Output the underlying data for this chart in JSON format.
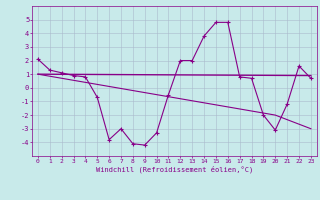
{
  "line1_x": [
    0,
    1,
    2,
    3,
    4,
    5,
    6,
    7,
    8,
    9,
    10,
    11,
    12,
    13,
    14,
    15,
    16,
    17,
    18,
    19,
    20,
    21,
    22,
    23
  ],
  "line1_y": [
    2.1,
    1.3,
    1.1,
    0.9,
    0.8,
    -0.7,
    -3.8,
    -3.0,
    -4.1,
    -4.2,
    -3.3,
    -0.5,
    2.0,
    2.0,
    3.8,
    4.8,
    4.8,
    0.8,
    0.7,
    -2.0,
    -3.1,
    -1.2,
    1.6,
    0.7
  ],
  "line2_x": [
    0,
    23
  ],
  "line2_y": [
    1.0,
    0.9
  ],
  "line3_x": [
    0,
    10,
    20,
    23
  ],
  "line3_y": [
    1.0,
    -0.5,
    -2.0,
    -3.0
  ],
  "line_color": "#880088",
  "bg_color": "#c8eaea",
  "grid_color": "#aabbcc",
  "xlabel": "Windchill (Refroidissement éolien,°C)",
  "xlim": [
    -0.5,
    23.5
  ],
  "ylim": [
    -5,
    6
  ],
  "yticks": [
    -4,
    -3,
    -2,
    -1,
    0,
    1,
    2,
    3,
    4,
    5
  ],
  "xticks": [
    0,
    1,
    2,
    3,
    4,
    5,
    6,
    7,
    8,
    9,
    10,
    11,
    12,
    13,
    14,
    15,
    16,
    17,
    18,
    19,
    20,
    21,
    22,
    23
  ]
}
